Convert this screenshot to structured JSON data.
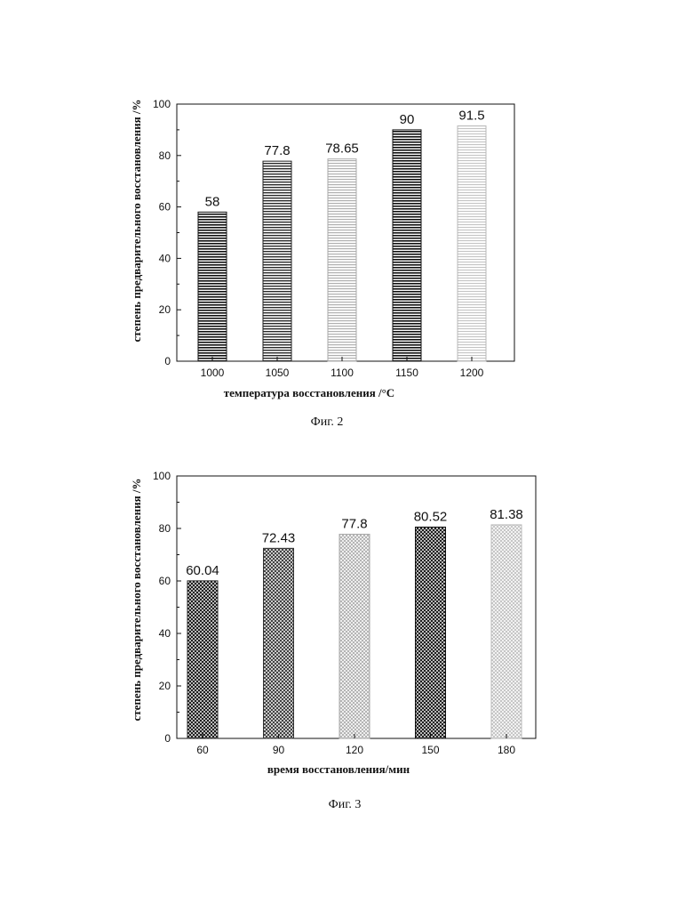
{
  "chart_data": [
    {
      "type": "bar",
      "categories": [
        "1000",
        "1050",
        "1100",
        "1150",
        "1200"
      ],
      "values": [
        58,
        77.8,
        78.65,
        90,
        91.5
      ],
      "data_labels": [
        "58",
        "77.8",
        "78.65",
        "90",
        "91.5"
      ],
      "ylim": [
        0,
        100
      ],
      "yticks": [
        "0",
        "20",
        "40",
        "60",
        "80",
        "100"
      ],
      "xlabel": "температура восстановления /°C",
      "ylabel": "степень предварительного восстановления /%",
      "caption": "Фиг. 2",
      "grid": false,
      "bar_colors": [
        "#111111",
        "#222222",
        "#aaaaaa",
        "#111111",
        "#b8b8b8"
      ]
    },
    {
      "type": "bar",
      "categories": [
        "60",
        "90",
        "120",
        "150",
        "180"
      ],
      "values": [
        60.04,
        72.43,
        77.8,
        80.52,
        81.38
      ],
      "data_labels": [
        "60.04",
        "72.43",
        "77.8",
        "80.52",
        "81.38"
      ],
      "ylim": [
        0,
        100
      ],
      "yticks": [
        "0",
        "20",
        "40",
        "60",
        "80",
        "100"
      ],
      "xlabel": "время восстановления/мин",
      "ylabel": "степень предварительного восстановления /%",
      "caption": "Фиг. 3",
      "grid": false,
      "bar_colors": [
        "#222222",
        "#333333",
        "#aaaaaa",
        "#111111",
        "#b8b8b8"
      ]
    }
  ]
}
